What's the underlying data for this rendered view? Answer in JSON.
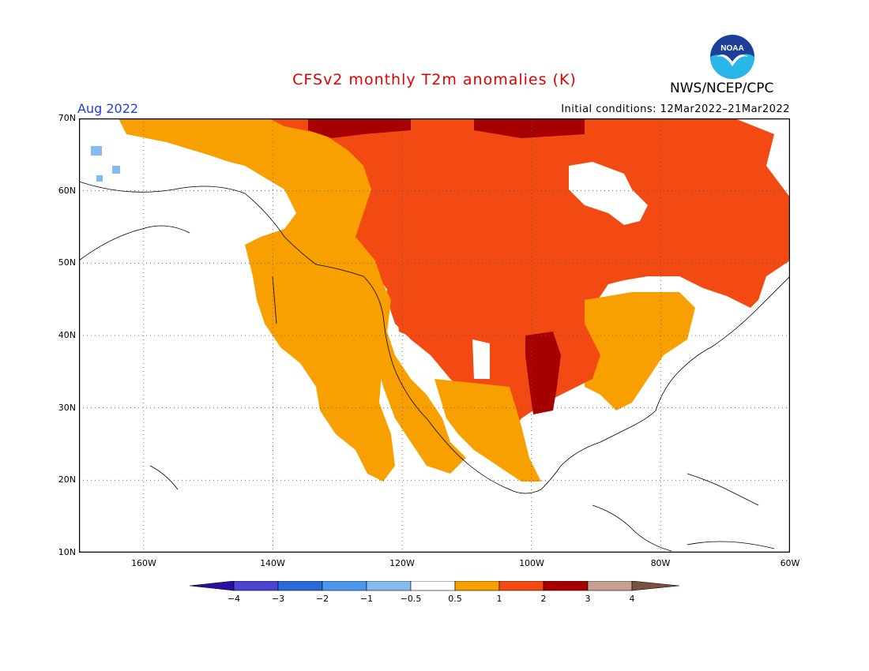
{
  "title": "CFSv2 monthly T2m anomalies (K)",
  "month": "Aug 2022",
  "initial_conditions": "Initial conditions: 12Mar2022–21Mar2022",
  "agency": "NWS/NCEP/CPC",
  "logo_text": "NOAA",
  "lat_labels": [
    "70N",
    "60N",
    "50N",
    "40N",
    "30N",
    "20N",
    "10N"
  ],
  "lon_labels": [
    "160W",
    "140W",
    "120W",
    "100W",
    "80W",
    "60W"
  ],
  "colorbar": {
    "labels": [
      "−4",
      "−3",
      "−2",
      "−1",
      "−0.5",
      "0.5",
      "1",
      "2",
      "3",
      "4"
    ],
    "colors": [
      "#2a0fa0",
      "#4a44d0",
      "#2a6ad8",
      "#4a98ec",
      "#84bcf0",
      "#ffffff",
      "#f7a000",
      "#f24a12",
      "#a60000",
      "#c8a090",
      "#7a5040"
    ]
  },
  "colors": {
    "title": "#e00000",
    "month": "#2040e0",
    "weak_warm": "#f7a000",
    "warm": "#f24a12",
    "strong_warm": "#a60000",
    "cool": "#84bcf0"
  }
}
